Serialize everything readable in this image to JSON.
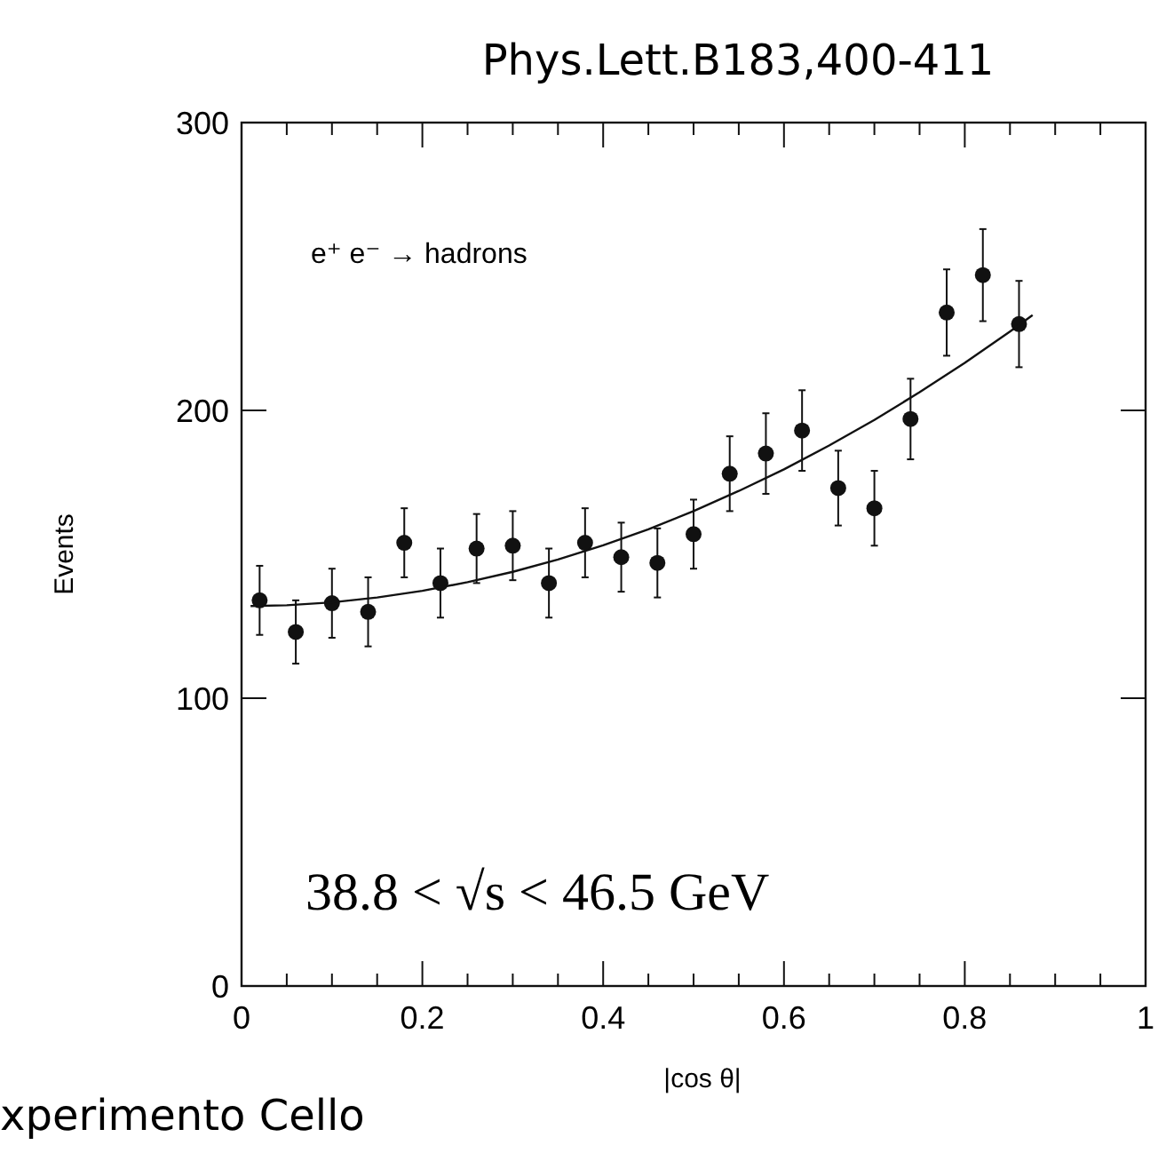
{
  "chart_data": {
    "type": "scatter",
    "title": "Phys.Lett.B183,400-411",
    "xlabel": "|cos θ|",
    "ylabel": "Events",
    "annotations": [
      "e⁺ e⁻ → hadrons",
      "38.8 < √s < 46.5 GeV",
      "xperimento Cello"
    ],
    "xlim": [
      0,
      1
    ],
    "ylim": [
      0,
      300
    ],
    "xticks": [
      0,
      {
        "value": 0.05,
        "label": null
      },
      {
        "value": 0.1,
        "label": null
      },
      {
        "value": 0.15,
        "label": null
      },
      0.2,
      {
        "value": 0.25,
        "label": null
      },
      {
        "value": 0.3,
        "label": null
      },
      {
        "value": 0.35,
        "label": null
      },
      0.4,
      {
        "value": 0.45,
        "label": null
      },
      {
        "value": 0.5,
        "label": null
      },
      {
        "value": 0.55,
        "label": null
      },
      0.6,
      {
        "value": 0.65,
        "label": null
      },
      {
        "value": 0.7,
        "label": null
      },
      {
        "value": 0.75,
        "label": null
      },
      0.8,
      {
        "value": 0.85,
        "label": null
      },
      {
        "value": 0.9,
        "label": null
      },
      {
        "value": 0.95,
        "label": null
      },
      1
    ],
    "yticks": [
      0,
      100,
      200,
      300
    ],
    "grid": false,
    "marker": "circle",
    "series": [
      {
        "color": "#111111",
        "x": [
          0.02,
          0.06,
          0.1,
          0.14,
          0.18,
          0.22,
          0.26,
          0.3,
          0.34,
          0.38,
          0.42,
          0.46,
          0.5,
          0.54,
          0.58,
          0.62,
          0.66,
          0.7,
          0.74,
          0.78,
          0.82,
          0.86
        ],
        "values": [
          134,
          123,
          133,
          130,
          154,
          140,
          152,
          153,
          140,
          154,
          149,
          147,
          157,
          178,
          185,
          193,
          173,
          166,
          197,
          234,
          247,
          230
        ],
        "errors": [
          12,
          11,
          12,
          12,
          12,
          12,
          12,
          12,
          12,
          12,
          12,
          12,
          12,
          13,
          14,
          14,
          13,
          13,
          14,
          15,
          16,
          15
        ]
      },
      {
        "type": "line",
        "color": "#111111",
        "marker": "none",
        "line_style": "solid",
        "x": [
          0.01,
          0.05,
          0.1,
          0.15,
          0.2,
          0.25,
          0.3,
          0.35,
          0.4,
          0.45,
          0.5,
          0.55,
          0.6,
          0.65,
          0.7,
          0.75,
          0.8,
          0.85,
          0.875
        ],
        "values": [
          132,
          132.3,
          133.3,
          135,
          137.3,
          140.3,
          143.9,
          148.2,
          153.1,
          158.7,
          165,
          172,
          179.5,
          187.8,
          196.7,
          206.3,
          216.5,
          227.4,
          233.1
        ]
      }
    ]
  }
}
